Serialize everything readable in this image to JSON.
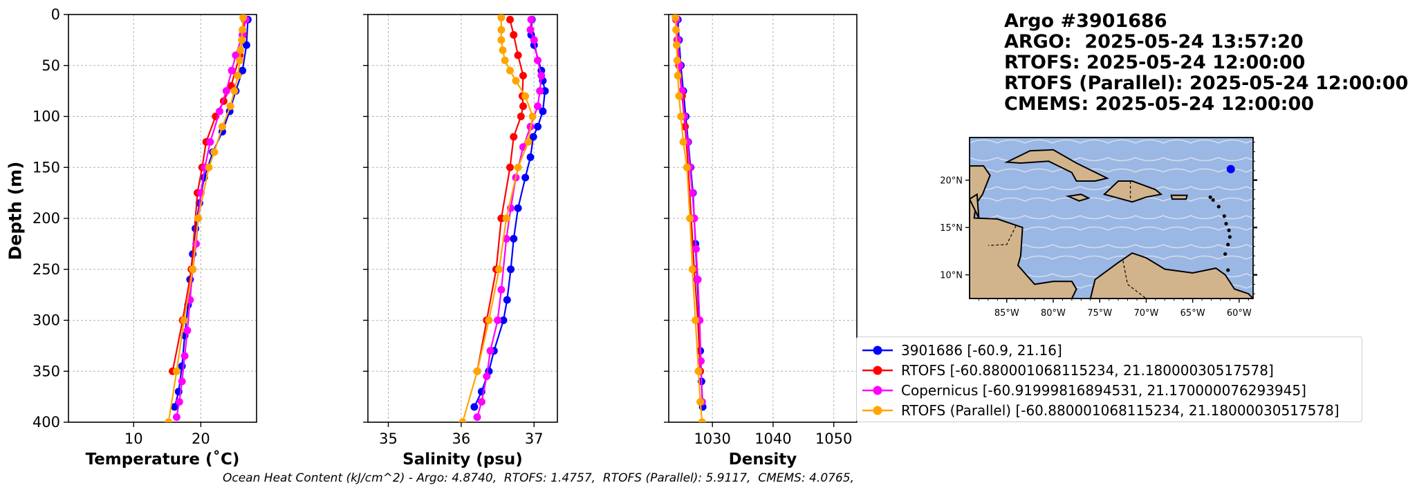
{
  "header": {
    "float_id": "Argo #3901686",
    "argo_time": "ARGO:  2025-05-24 13:57:20",
    "rtofs_time": "RTOFS: 2025-05-24 12:00:00",
    "rtofs_parallel_time": "RTOFS (Parallel): 2025-05-24 12:00:00",
    "cmems_time": "CMEMS: 2025-05-24 12:00:00"
  },
  "footer": "Ocean Heat Content (kJ/cm^2) - Argo: 4.8740,  RTOFS: 1.4757,  RTOFS (Parallel): 5.9117,  CMEMS: 4.0765,",
  "colors": {
    "argo": "#0000ff",
    "rtofs": "#ff0000",
    "copernicus": "#ff00ff",
    "rtofs_parallel": "#ffa500",
    "ocean": "#9bb7e4",
    "land": "#d2b48c",
    "streamline": "#dde4ec"
  },
  "legend": [
    {
      "key": "argo",
      "label": "3901686 [-60.9, 21.16]"
    },
    {
      "key": "rtofs",
      "label": "RTOFS [-60.880001068115234, 21.18000030517578]"
    },
    {
      "key": "copernicus",
      "label": "Copernicus [-60.91999816894531, 21.170000076293945]"
    },
    {
      "key": "rtofs_parallel",
      "label": "RTOFS (Parallel) [-60.880001068115234, 21.18000030517578]"
    }
  ],
  "ylabel": "Depth (m)",
  "chart_data": [
    {
      "type": "line",
      "xlabel": "Temperature (˚C)",
      "ylabel": "Depth (m)",
      "xlim": [
        0.3,
        28.3
      ],
      "ylim": [
        400,
        0
      ],
      "xticks": [
        10,
        20
      ],
      "yticks": [
        0,
        50,
        100,
        150,
        200,
        250,
        300,
        350,
        400
      ],
      "grid": true,
      "series": [
        {
          "key": "argo",
          "x": [
            27.0,
            26.8,
            26.2,
            25.2,
            24.3,
            23.2,
            21.8,
            20.5,
            19.8,
            19.2,
            18.8,
            18.4,
            18.1,
            17.6,
            17.2,
            16.7,
            16.1
          ],
          "y": [
            5,
            30,
            55,
            75,
            95,
            115,
            135,
            160,
            185,
            210,
            235,
            260,
            285,
            315,
            345,
            370,
            385
          ]
        },
        {
          "key": "rtofs",
          "x": [
            26.5,
            26.3,
            25.8,
            24.5,
            23.4,
            22.2,
            20.8,
            20.2,
            19.5,
            18.6,
            17.3,
            15.8
          ],
          "y": [
            5,
            20,
            40,
            70,
            85,
            100,
            125,
            150,
            175,
            250,
            300,
            350
          ]
        },
        {
          "key": "copernicus",
          "x": [
            26.7,
            26.2,
            25.2,
            24.6,
            23.8,
            22.8,
            21.4,
            20.6,
            20.0,
            19.6,
            19.3,
            18.8,
            18.4,
            18.0,
            17.6,
            17.2,
            16.8,
            16.4
          ],
          "y": [
            5,
            20,
            40,
            55,
            75,
            95,
            125,
            150,
            175,
            200,
            225,
            250,
            280,
            310,
            335,
            360,
            380,
            395
          ]
        },
        {
          "key": "rtofs_parallel",
          "x": [
            26.3,
            26.2,
            26.1,
            25.9,
            25.8,
            25.5,
            25.0,
            24.4,
            23.2,
            22.0,
            21.2,
            19.6,
            18.8,
            17.5,
            16.4,
            15.2
          ],
          "y": [
            3,
            15,
            25,
            35,
            45,
            60,
            75,
            90,
            110,
            135,
            150,
            200,
            250,
            300,
            350,
            400
          ]
        }
      ]
    },
    {
      "type": "line",
      "xlabel": "Salinity (psu)",
      "ylabel": "",
      "xlim": [
        34.72,
        37.32
      ],
      "ylim": [
        400,
        0
      ],
      "xticks": [
        35,
        36,
        37
      ],
      "yticks": [
        0,
        50,
        100,
        150,
        200,
        250,
        300,
        350,
        400
      ],
      "grid": true,
      "series": [
        {
          "key": "argo",
          "x": [
            36.97,
            36.96,
            37.0,
            37.1,
            37.12,
            37.15,
            37.12,
            37.05,
            36.99,
            36.95,
            36.88,
            36.78,
            36.72,
            36.68,
            36.63,
            36.58,
            36.45,
            36.38,
            36.28,
            36.18
          ],
          "y": [
            5,
            20,
            30,
            55,
            65,
            75,
            95,
            110,
            120,
            140,
            160,
            190,
            220,
            250,
            280,
            300,
            330,
            350,
            370,
            385
          ]
        },
        {
          "key": "rtofs",
          "x": [
            36.67,
            36.72,
            36.78,
            36.85,
            36.84,
            36.85,
            36.82,
            36.72,
            36.67,
            36.55,
            36.48,
            36.35,
            36.22
          ],
          "y": [
            5,
            20,
            40,
            60,
            80,
            90,
            100,
            120,
            150,
            200,
            250,
            300,
            350
          ]
        },
        {
          "key": "copernicus",
          "x": [
            36.96,
            36.95,
            37.0,
            37.05,
            37.1,
            37.08,
            37.05,
            36.95,
            36.85,
            36.75,
            36.68,
            36.62,
            36.55,
            36.5,
            36.4,
            36.35,
            36.28,
            36.22
          ],
          "y": [
            5,
            15,
            25,
            45,
            60,
            75,
            90,
            110,
            130,
            160,
            190,
            220,
            270,
            300,
            330,
            355,
            380,
            395
          ]
        },
        {
          "key": "rtofs_parallel",
          "x": [
            36.55,
            36.55,
            36.55,
            36.57,
            36.6,
            36.67,
            36.75,
            36.88,
            36.98,
            36.92,
            36.78,
            36.62,
            36.52,
            36.38,
            36.22,
            36.02
          ],
          "y": [
            3,
            15,
            25,
            35,
            45,
            55,
            65,
            80,
            100,
            125,
            150,
            200,
            250,
            300,
            350,
            400
          ]
        }
      ]
    },
    {
      "type": "line",
      "xlabel": "Density",
      "ylabel": "",
      "xlim": [
        1022.8,
        1053.8
      ],
      "ylim": [
        400,
        0
      ],
      "xticks": [
        1030,
        1040,
        1050
      ],
      "yticks": [
        0,
        50,
        100,
        150,
        200,
        250,
        300,
        350,
        400
      ],
      "grid": true,
      "series": [
        {
          "key": "argo",
          "x": [
            1024.3,
            1024.5,
            1024.8,
            1025.2,
            1025.6,
            1026.0,
            1026.4,
            1026.8,
            1027.0,
            1027.2,
            1027.5,
            1027.8,
            1028.0,
            1028.2,
            1028.4
          ],
          "y": [
            5,
            25,
            50,
            75,
            100,
            125,
            150,
            175,
            200,
            225,
            260,
            300,
            330,
            360,
            385
          ]
        },
        {
          "key": "rtofs",
          "x": [
            1024.0,
            1024.2,
            1024.5,
            1025.0,
            1025.5,
            1026.0,
            1026.5,
            1027.0,
            1027.6,
            1028.0
          ],
          "y": [
            5,
            25,
            50,
            80,
            110,
            150,
            200,
            250,
            300,
            350
          ]
        },
        {
          "key": "copernicus",
          "x": [
            1024.1,
            1024.3,
            1024.6,
            1025.0,
            1025.4,
            1025.9,
            1026.3,
            1026.7,
            1027.0,
            1027.3,
            1027.6,
            1027.9,
            1028.1,
            1028.3
          ],
          "y": [
            5,
            25,
            50,
            75,
            100,
            125,
            150,
            175,
            200,
            230,
            260,
            300,
            340,
            380
          ]
        },
        {
          "key": "rtofs_parallel",
          "x": [
            1023.9,
            1024.0,
            1024.1,
            1024.2,
            1024.3,
            1024.5,
            1024.8,
            1025.2,
            1025.8,
            1026.3,
            1026.7,
            1027.2,
            1027.7,
            1028.0,
            1028.3
          ],
          "y": [
            3,
            15,
            30,
            45,
            60,
            80,
            100,
            125,
            150,
            200,
            250,
            300,
            350,
            380,
            400
          ]
        }
      ]
    }
  ],
  "map": {
    "xticks": [
      "85°W",
      "80°W",
      "75°W",
      "70°W",
      "65°W",
      "60°W"
    ],
    "yticks": [
      "20°N",
      "15°N",
      "10°N"
    ],
    "lon_range": [
      -89,
      -58.5
    ],
    "lat_range": [
      7.5,
      24.5
    ],
    "float_lon": -60.9,
    "float_lat": 21.16
  }
}
